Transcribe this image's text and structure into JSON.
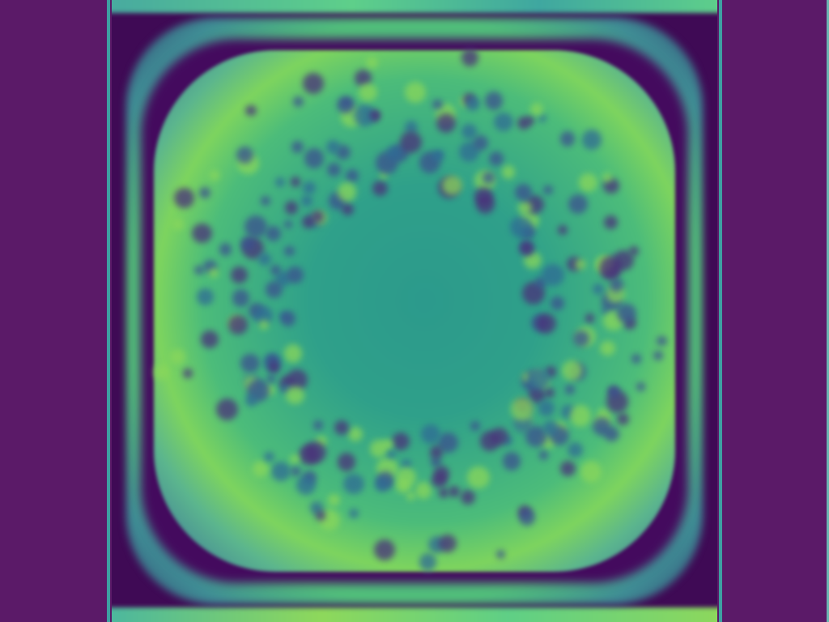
{
  "image": {
    "alt": "",
    "palette": {
      "outer": "#5b1a68",
      "field": "#3f0a55",
      "teal": "#2fa08a",
      "green": "#7dd45e",
      "dark": "#440a5e"
    }
  }
}
